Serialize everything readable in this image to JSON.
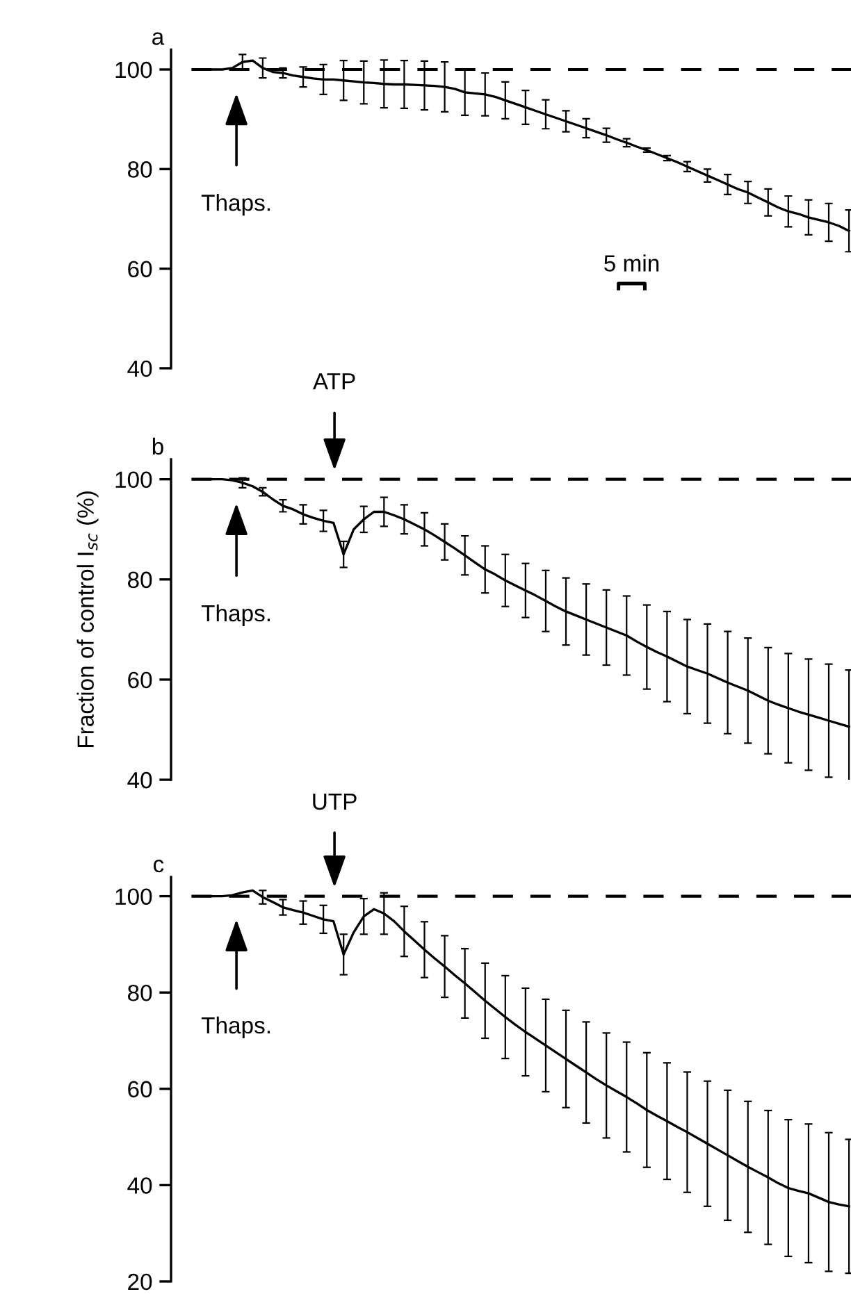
{
  "chart_data": [
    {
      "type": "line",
      "title": "a",
      "ylim": [
        40,
        104
      ],
      "yticks": [
        40,
        60,
        80,
        100
      ],
      "tick_labels": "y",
      "grid": false,
      "marker": "none",
      "line_style": "solid",
      "categories": [
        null,
        null,
        null,
        null,
        null,
        null,
        null,
        null,
        null,
        null,
        null,
        null,
        null,
        null,
        null,
        null,
        null,
        null,
        null,
        null,
        null,
        null,
        null,
        null,
        null,
        null,
        null,
        null,
        null,
        null,
        null,
        null,
        null,
        null,
        null,
        null,
        null,
        null,
        null,
        null,
        null,
        null,
        null,
        null,
        null,
        null,
        null,
        null,
        null,
        null,
        null,
        null,
        null,
        null,
        null,
        null,
        null,
        null,
        null,
        null,
        null,
        null,
        null,
        null,
        null
      ],
      "series": [
        {
          "color": "#000000",
          "values": [
            100,
            100,
            100,
            100.3,
            101.5,
            101.8,
            100.3,
            99.5,
            99.3,
            98.8,
            98.5,
            98.2,
            98,
            98,
            97.8,
            97.6,
            97.4,
            97.3,
            97.1,
            97,
            97,
            96.9,
            96.8,
            96.7,
            96.5,
            96.1,
            95.4,
            95.2,
            95,
            94.5,
            93.8,
            93.1,
            92.4,
            91.7,
            91,
            90.3,
            89.6,
            88.9,
            88.2,
            87.5,
            86.8,
            86,
            85.3,
            84.5,
            83.8,
            83,
            82.2,
            81.4,
            80.5,
            79.6,
            78.7,
            77.8,
            76.9,
            76,
            75.3,
            74.3,
            73.3,
            72.3,
            71.5,
            71,
            70.3,
            69.8,
            69.3,
            68.6,
            67.6
          ],
          "errors": [
            null,
            null,
            null,
            null,
            1.5,
            null,
            2,
            null,
            1,
            null,
            2,
            null,
            3,
            null,
            4,
            null,
            4.3,
            null,
            4.8,
            null,
            4.8,
            null,
            4.9,
            null,
            5,
            null,
            4.6,
            null,
            4.3,
            null,
            3.7,
            null,
            3.4,
            null,
            2.9,
            null,
            2.1,
            null,
            1.9,
            null,
            1.4,
            null,
            0.8,
            null,
            0.4,
            null,
            0.5,
            null,
            1,
            null,
            1.3,
            null,
            2,
            null,
            2.2,
            null,
            2.7,
            null,
            3.1,
            null,
            3.5,
            null,
            3.8,
            null,
            4.2
          ]
        }
      ],
      "ref_lines": [
        {
          "axis": "y",
          "value": 100,
          "line_style": "dashed",
          "color": "#000000"
        }
      ],
      "annotations": [
        "Thaps.",
        "5 min"
      ]
    },
    {
      "type": "line",
      "title": "b",
      "ylim": [
        40,
        104
      ],
      "yticks": [
        40,
        60,
        80,
        100
      ],
      "tick_labels": "y",
      "grid": false,
      "marker": "none",
      "line_style": "solid",
      "ylabel": "Fraction of control I$_{sc}$ (%)",
      "categories": [
        null,
        null,
        null,
        null,
        null,
        null,
        null,
        null,
        null,
        null,
        null,
        null,
        null,
        null,
        null,
        null,
        null,
        null,
        null,
        null,
        null,
        null,
        null,
        null,
        null,
        null,
        null,
        null,
        null,
        null,
        null,
        null,
        null,
        null,
        null,
        null,
        null,
        null,
        null,
        null,
        null,
        null,
        null,
        null,
        null,
        null,
        null,
        null,
        null,
        null,
        null,
        null,
        null,
        null,
        null,
        null,
        null,
        null,
        null,
        null,
        null,
        null,
        null,
        null,
        null
      ],
      "series": [
        {
          "color": "#000000",
          "values": [
            100,
            100,
            100,
            99.8,
            99.3,
            98.6,
            97.5,
            96,
            94.7,
            94,
            93,
            92.3,
            91.7,
            91.3,
            85,
            90,
            92,
            93.5,
            93.5,
            92.8,
            92,
            91,
            90,
            88.8,
            87.5,
            86.2,
            84.8,
            83.4,
            82,
            81,
            79.8,
            78.8,
            77.8,
            76.8,
            75.7,
            74.6,
            73.6,
            72.8,
            72,
            71.2,
            70.4,
            69.6,
            68.8,
            67.6,
            66.5,
            65.5,
            64.6,
            63.6,
            62.6,
            61.9,
            61.2,
            60.3,
            59.4,
            58.6,
            57.8,
            56.8,
            55.8,
            55,
            54.3,
            53.6,
            53,
            52.4,
            51.8,
            51.2,
            50.6
          ],
          "errors": [
            null,
            null,
            null,
            null,
            1,
            null,
            0.8,
            null,
            1.2,
            null,
            1.9,
            null,
            2.1,
            null,
            2.6,
            null,
            2.6,
            null,
            2.9,
            null,
            2.9,
            null,
            3.3,
            null,
            3.6,
            null,
            3.9,
            null,
            4.7,
            null,
            5.2,
            null,
            5.4,
            null,
            6.1,
            null,
            6.7,
            null,
            7.1,
            null,
            7.5,
            null,
            7.9,
            null,
            8.4,
            null,
            9,
            null,
            9.4,
            null,
            9.9,
            null,
            10.2,
            null,
            10.5,
            null,
            10.6,
            null,
            10.9,
            null,
            11.1,
            null,
            11.3,
            null,
            11.3
          ]
        }
      ],
      "ref_lines": [
        {
          "axis": "y",
          "value": 100,
          "line_style": "dashed",
          "color": "#000000"
        }
      ],
      "annotations": [
        "ATP",
        "Thaps."
      ]
    },
    {
      "type": "line",
      "title": "c",
      "ylim": [
        20,
        104
      ],
      "yticks": [
        20,
        40,
        60,
        80,
        100
      ],
      "tick_labels": "y",
      "grid": false,
      "marker": "none",
      "line_style": "solid",
      "categories": [
        null,
        null,
        null,
        null,
        null,
        null,
        null,
        null,
        null,
        null,
        null,
        null,
        null,
        null,
        null,
        null,
        null,
        null,
        null,
        null,
        null,
        null,
        null,
        null,
        null,
        null,
        null,
        null,
        null,
        null,
        null,
        null,
        null,
        null,
        null,
        null,
        null,
        null,
        null,
        null,
        null,
        null,
        null,
        null,
        null,
        null,
        null,
        null,
        null,
        null,
        null,
        null,
        null,
        null,
        null,
        null,
        null,
        null,
        null,
        null,
        null,
        null,
        null,
        null,
        null
      ],
      "series": [
        {
          "color": "#000000",
          "values": [
            100,
            100,
            100,
            100.2,
            100.8,
            101.2,
            99.8,
            98.8,
            97.7,
            97.1,
            96.6,
            95.9,
            95.2,
            94.8,
            87.9,
            92.5,
            95.8,
            97.3,
            96.4,
            94.8,
            92.7,
            90.8,
            88.9,
            87.1,
            85.4,
            83.6,
            81.9,
            80.1,
            78.3,
            76.6,
            74.9,
            73.3,
            71.8,
            70.4,
            69,
            67.6,
            66.2,
            64.8,
            63.4,
            62,
            60.7,
            59.5,
            58.3,
            57,
            55.6,
            54.4,
            53.3,
            52.1,
            51,
            49.8,
            48.6,
            47.4,
            46.2,
            45,
            43.8,
            42.7,
            41.6,
            40.4,
            39.4,
            38.8,
            38.3,
            37.4,
            36.5,
            36,
            35.6
          ],
          "errors": [
            null,
            null,
            null,
            null,
            null,
            null,
            1.4,
            null,
            1.6,
            null,
            2.4,
            null,
            2.9,
            null,
            4.2,
            null,
            3.7,
            null,
            4.3,
            null,
            5.2,
            null,
            5.8,
            null,
            6.4,
            null,
            7.2,
            null,
            7.8,
            null,
            8.6,
            null,
            9.1,
            null,
            9.6,
            null,
            10.1,
            null,
            10.5,
            null,
            10.9,
            null,
            11.4,
            null,
            11.9,
            null,
            12.1,
            null,
            12.5,
            null,
            13,
            null,
            13.5,
            null,
            13.6,
            null,
            13.9,
            null,
            14.2,
            null,
            14.4,
            null,
            14.4,
            null,
            13.9
          ]
        }
      ],
      "ref_lines": [
        {
          "axis": "y",
          "value": 100,
          "line_style": "dashed",
          "color": "#000000"
        }
      ],
      "annotations": [
        "UTP",
        "Thaps."
      ]
    }
  ]
}
